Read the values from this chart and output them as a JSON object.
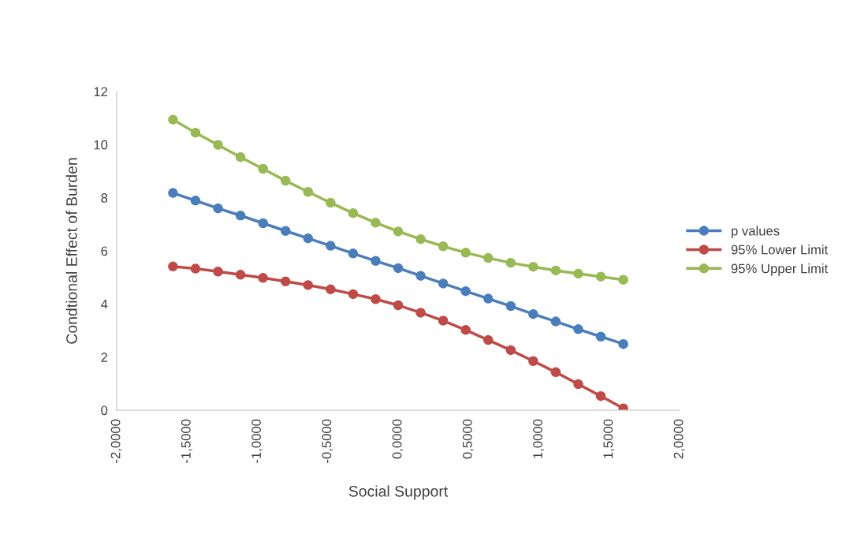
{
  "chart_data": {
    "type": "line",
    "xlabel": "Social Support",
    "ylabel": "Condtional Effect of Burden",
    "x": [
      -1.6,
      -1.44,
      -1.28,
      -1.12,
      -0.96,
      -0.8,
      -0.64,
      -0.48,
      -0.32,
      -0.16,
      0,
      0.16,
      0.32,
      0.48,
      0.64,
      0.8,
      0.96,
      1.12,
      1.28,
      1.44,
      1.6
    ],
    "series": [
      {
        "name": "p values",
        "color": "#4a7ebb",
        "values": [
          8.18,
          7.89,
          7.6,
          7.33,
          7.04,
          6.75,
          6.47,
          6.19,
          5.9,
          5.62,
          5.35,
          5.06,
          4.77,
          4.48,
          4.2,
          3.92,
          3.62,
          3.34,
          3.05,
          2.77,
          2.49
        ]
      },
      {
        "name": "95% Lower Limit",
        "color": "#be4b48",
        "values": [
          5.41,
          5.33,
          5.22,
          5.1,
          4.98,
          4.85,
          4.71,
          4.55,
          4.37,
          4.18,
          3.95,
          3.67,
          3.37,
          3.02,
          2.64,
          2.26,
          1.85,
          1.43,
          0.98,
          0.53,
          0.07
        ]
      },
      {
        "name": "95% Upper Limit",
        "color": "#98b954",
        "values": [
          10.94,
          10.45,
          9.99,
          9.53,
          9.09,
          8.64,
          8.22,
          7.81,
          7.42,
          7.06,
          6.73,
          6.44,
          6.17,
          5.93,
          5.73,
          5.55,
          5.4,
          5.26,
          5.14,
          5.03,
          4.91
        ]
      }
    ],
    "xlim": [
      -2,
      2
    ],
    "xticks": [
      {
        "value": -2,
        "label": "-2,0000"
      },
      {
        "value": -1.5,
        "label": "-1,5000"
      },
      {
        "value": -1,
        "label": "-1,0000"
      },
      {
        "value": -0.5,
        "label": "-0,5000"
      },
      {
        "value": 0,
        "label": "0,0000"
      },
      {
        "value": 0.5,
        "label": "0,5000"
      },
      {
        "value": 1,
        "label": "1,0000"
      },
      {
        "value": 1.5,
        "label": "1,5000"
      },
      {
        "value": 2,
        "label": "2,0000"
      }
    ],
    "ylim": [
      0,
      12
    ],
    "yticks": [
      0,
      2,
      4,
      6,
      8,
      10,
      12
    ],
    "grid": false,
    "legend": "right",
    "marker": "circle",
    "line_style": "solid"
  }
}
